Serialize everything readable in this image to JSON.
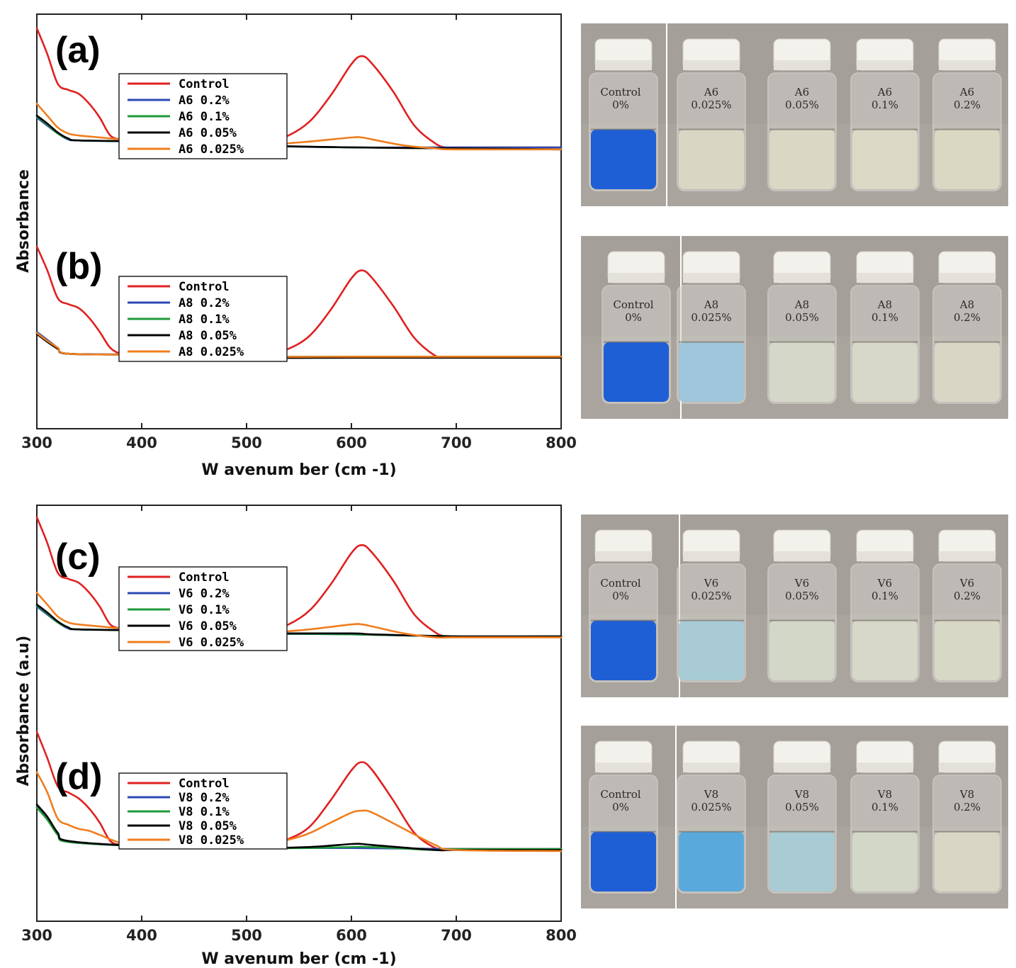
{
  "chart_data": [
    {
      "type": "line",
      "chart_key": "ab",
      "xlabel": "W avenum ber (cm -1)",
      "ylabel": "Absorbance",
      "xlim": [
        300,
        800
      ],
      "x_ticks": [
        300,
        400,
        500,
        600,
        700,
        800
      ],
      "panels": [
        {
          "label": "(a)",
          "legend": [
            "Control",
            "A6 0.2%",
            "A6 0.1%",
            "A6 0.05%",
            "A6 0.025%"
          ],
          "series": [
            {
              "name": "Control",
              "color": "#e02020",
              "x": [
                300,
                310,
                320,
                330,
                340,
                350,
                360,
                370,
                380,
                390,
                400,
                450,
                500,
                520,
                540,
                560,
                580,
                600,
                610,
                620,
                640,
                660,
                680,
                690,
                700,
                800
              ],
              "y": [
                1.0,
                0.87,
                0.72,
                0.69,
                0.67,
                0.62,
                0.55,
                0.46,
                0.44,
                0.43,
                0.43,
                0.44,
                0.43,
                0.43,
                0.46,
                0.53,
                0.66,
                0.82,
                0.86,
                0.82,
                0.68,
                0.51,
                0.42,
                0.4,
                0.4,
                0.4
              ]
            },
            {
              "name": "A6 0.2%",
              "color": "#2b48b5",
              "x": [
                300,
                310,
                320,
                330,
                340,
                400,
                450,
                500,
                600,
                700,
                800
              ],
              "y": [
                0.55,
                0.51,
                0.47,
                0.44,
                0.435,
                0.43,
                0.43,
                0.41,
                0.4,
                0.4,
                0.4
              ]
            },
            {
              "name": "A6 0.1%",
              "color": "#1e9a3a",
              "x": [
                300,
                310,
                320,
                330,
                340,
                400,
                450,
                500,
                600,
                700,
                800
              ],
              "y": [
                0.555,
                0.515,
                0.47,
                0.445,
                0.435,
                0.43,
                0.42,
                0.41,
                0.4,
                0.395,
                0.39
              ]
            },
            {
              "name": "A6 0.05%",
              "color": "#000000",
              "x": [
                300,
                310,
                320,
                330,
                340,
                400,
                450,
                500,
                600,
                700,
                800
              ],
              "y": [
                0.56,
                0.52,
                0.475,
                0.445,
                0.435,
                0.43,
                0.42,
                0.41,
                0.4,
                0.395,
                0.39
              ]
            },
            {
              "name": "A6 0.025%",
              "color": "#f07d1e",
              "x": [
                300,
                310,
                320,
                330,
                340,
                350,
                380,
                400,
                450,
                500,
                550,
                600,
                610,
                620,
                650,
                680,
                700,
                800
              ],
              "y": [
                0.62,
                0.56,
                0.5,
                0.47,
                0.46,
                0.455,
                0.44,
                0.43,
                0.42,
                0.41,
                0.425,
                0.45,
                0.45,
                0.44,
                0.41,
                0.395,
                0.39,
                0.39
              ]
            }
          ]
        },
        {
          "label": "(b)",
          "legend": [
            "Control",
            "A8 0.2%",
            "A8 0.1%",
            "A8 0.05%",
            "A8 0.025%"
          ],
          "series": [
            {
              "name": "Control",
              "color": "#e02020",
              "x": [
                300,
                310,
                320,
                330,
                340,
                350,
                360,
                370,
                380,
                390,
                400,
                450,
                500,
                520,
                540,
                560,
                580,
                600,
                610,
                620,
                640,
                660,
                680,
                690,
                700,
                800
              ],
              "y": [
                0.9,
                0.78,
                0.64,
                0.61,
                0.59,
                0.54,
                0.47,
                0.39,
                0.36,
                0.355,
                0.355,
                0.36,
                0.355,
                0.355,
                0.385,
                0.45,
                0.58,
                0.74,
                0.78,
                0.74,
                0.6,
                0.44,
                0.35,
                0.345,
                0.345,
                0.345
              ]
            },
            {
              "name": "A8 0.2%",
              "color": "#2b48b5",
              "x": [
                300,
                310,
                320,
                330,
                400,
                500,
                600,
                700,
                800
              ],
              "y": [
                0.47,
                0.43,
                0.39,
                0.36,
                0.355,
                0.345,
                0.345,
                0.345,
                0.345
              ]
            },
            {
              "name": "A8 0.1%",
              "color": "#1e9a3a",
              "x": [
                300,
                310,
                320,
                330,
                400,
                500,
                600,
                700,
                800
              ],
              "y": [
                0.465,
                0.425,
                0.39,
                0.36,
                0.355,
                0.345,
                0.345,
                0.345,
                0.345
              ]
            },
            {
              "name": "A8 0.05%",
              "color": "#000000",
              "x": [
                300,
                310,
                320,
                330,
                400,
                500,
                600,
                700,
                800
              ],
              "y": [
                0.46,
                0.42,
                0.385,
                0.36,
                0.355,
                0.34,
                0.34,
                0.34,
                0.34
              ]
            },
            {
              "name": "A8 0.025%",
              "color": "#f07d1e",
              "x": [
                300,
                310,
                320,
                330,
                400,
                500,
                600,
                700,
                800
              ],
              "y": [
                0.465,
                0.425,
                0.39,
                0.36,
                0.355,
                0.345,
                0.345,
                0.345,
                0.345
              ]
            }
          ]
        }
      ]
    },
    {
      "type": "line",
      "chart_key": "cd",
      "xlabel": "W avenum ber (cm -1)",
      "ylabel": "Absorbance (a.u)",
      "xlim": [
        300,
        800
      ],
      "x_ticks": [
        300,
        400,
        500,
        600,
        700,
        800
      ],
      "panels": [
        {
          "label": "(c)",
          "legend": [
            "Control",
            "V6 0.2%",
            "V6 0.1%",
            "V6 0.05%",
            "V6 0.025%"
          ],
          "series": [
            {
              "name": "Control",
              "color": "#e02020",
              "x": [
                300,
                310,
                320,
                330,
                340,
                350,
                360,
                370,
                380,
                390,
                400,
                450,
                500,
                520,
                540,
                560,
                580,
                600,
                610,
                620,
                640,
                660,
                680,
                690,
                700,
                800
              ],
              "y": [
                1.0,
                0.87,
                0.72,
                0.69,
                0.67,
                0.62,
                0.55,
                0.46,
                0.44,
                0.43,
                0.43,
                0.44,
                0.43,
                0.43,
                0.46,
                0.53,
                0.66,
                0.82,
                0.86,
                0.82,
                0.68,
                0.51,
                0.42,
                0.4,
                0.4,
                0.4
              ]
            },
            {
              "name": "V6 0.2%",
              "color": "#2b48b5",
              "x": [
                300,
                310,
                320,
                330,
                340,
                400,
                450,
                500,
                600,
                700,
                800
              ],
              "y": [
                0.55,
                0.51,
                0.47,
                0.44,
                0.435,
                0.43,
                0.43,
                0.415,
                0.41,
                0.4,
                0.4
              ]
            },
            {
              "name": "V6 0.1%",
              "color": "#1e9a3a",
              "x": [
                300,
                310,
                320,
                330,
                340,
                400,
                450,
                500,
                600,
                700,
                800
              ],
              "y": [
                0.555,
                0.515,
                0.47,
                0.445,
                0.435,
                0.43,
                0.42,
                0.415,
                0.41,
                0.4,
                0.4
              ]
            },
            {
              "name": "V6 0.05%",
              "color": "#000000",
              "x": [
                300,
                310,
                320,
                330,
                340,
                400,
                450,
                500,
                600,
                620,
                700,
                800
              ],
              "y": [
                0.56,
                0.52,
                0.475,
                0.445,
                0.435,
                0.43,
                0.42,
                0.415,
                0.415,
                0.41,
                0.4,
                0.4
              ]
            },
            {
              "name": "V6 0.025%",
              "color": "#f07d1e",
              "x": [
                300,
                310,
                320,
                330,
                340,
                350,
                380,
                400,
                450,
                500,
                550,
                600,
                610,
                620,
                650,
                680,
                700,
                800
              ],
              "y": [
                0.62,
                0.56,
                0.5,
                0.47,
                0.46,
                0.455,
                0.44,
                0.43,
                0.42,
                0.415,
                0.43,
                0.46,
                0.46,
                0.45,
                0.415,
                0.395,
                0.395,
                0.395
              ]
            }
          ]
        },
        {
          "label": "(d)",
          "legend": [
            "Control",
            "V8 0.2%",
            "V8 0.1%",
            "V8 0.05%",
            "V8 0.025%"
          ],
          "series": [
            {
              "name": "Control",
              "color": "#e02020",
              "x": [
                300,
                310,
                320,
                330,
                340,
                350,
                360,
                370,
                380,
                390,
                400,
                450,
                500,
                520,
                540,
                560,
                580,
                600,
                610,
                620,
                640,
                660,
                680,
                690,
                700,
                800
              ],
              "y": [
                0.92,
                0.79,
                0.65,
                0.62,
                0.59,
                0.54,
                0.47,
                0.38,
                0.36,
                0.355,
                0.36,
                0.365,
                0.36,
                0.365,
                0.39,
                0.45,
                0.58,
                0.73,
                0.77,
                0.73,
                0.58,
                0.42,
                0.345,
                0.34,
                0.34,
                0.34
              ]
            },
            {
              "name": "V8 0.2%",
              "color": "#2b48b5",
              "x": [
                300,
                310,
                320,
                330,
                400,
                500,
                600,
                700,
                800
              ],
              "y": [
                0.55,
                0.49,
                0.41,
                0.375,
                0.355,
                0.345,
                0.345,
                0.34,
                0.34
              ]
            },
            {
              "name": "V8 0.1%",
              "color": "#1e9a3a",
              "x": [
                300,
                310,
                320,
                330,
                400,
                500,
                560,
                600,
                620,
                680,
                700,
                800
              ],
              "y": [
                0.545,
                0.485,
                0.41,
                0.375,
                0.355,
                0.345,
                0.345,
                0.35,
                0.35,
                0.335,
                0.34,
                0.34
              ]
            },
            {
              "name": "V8 0.05%",
              "color": "#000000",
              "x": [
                300,
                310,
                320,
                330,
                400,
                500,
                560,
                600,
                610,
                620,
                680,
                700,
                800
              ],
              "y": [
                0.56,
                0.5,
                0.42,
                0.38,
                0.355,
                0.345,
                0.35,
                0.365,
                0.365,
                0.36,
                0.335,
                0.335,
                0.335
              ]
            },
            {
              "name": "V8 0.025%",
              "color": "#f07d1e",
              "x": [
                300,
                310,
                320,
                330,
                340,
                350,
                360,
                380,
                400,
                450,
                500,
                550,
                580,
                600,
                610,
                620,
                650,
                680,
                700,
                800
              ],
              "y": [
                0.72,
                0.62,
                0.49,
                0.46,
                0.44,
                0.43,
                0.41,
                0.37,
                0.355,
                0.35,
                0.35,
                0.4,
                0.47,
                0.52,
                0.53,
                0.52,
                0.44,
                0.36,
                0.335,
                0.33
              ]
            }
          ]
        }
      ]
    }
  ],
  "photos": [
    {
      "id": "a",
      "labels": [
        [
          "Control",
          "0%"
        ],
        [
          "A6",
          "0.025%"
        ],
        [
          "A6",
          "0.05%"
        ],
        [
          "A6",
          "0.1%"
        ],
        [
          "A6",
          "0.2%"
        ]
      ],
      "liquid_colors": [
        "#1f5fd6",
        "#d9d7c4",
        "#d8d8c4",
        "#d9d9c5",
        "#d9d8c3"
      ]
    },
    {
      "id": "b",
      "labels": [
        [
          "Control",
          "0%"
        ],
        [
          "A8",
          "0.025%"
        ],
        [
          "A8",
          "0.05%"
        ],
        [
          "A8",
          "0.1%"
        ],
        [
          "A8",
          "0.2%"
        ]
      ],
      "liquid_colors": [
        "#1f5fd6",
        "#9fc6da",
        "#d5d7c8",
        "#d8d8c8",
        "#d8d7c6"
      ]
    },
    {
      "id": "c",
      "labels": [
        [
          "Control",
          "0%"
        ],
        [
          "V6",
          "0.025%"
        ],
        [
          "V6",
          "0.05%"
        ],
        [
          "V6",
          "0.1%"
        ],
        [
          "V6",
          "0.2%"
        ]
      ],
      "liquid_colors": [
        "#1f5fd6",
        "#a9cbd6",
        "#d3d7c8",
        "#d7d8c8",
        "#d8d8c7"
      ]
    },
    {
      "id": "d",
      "labels": [
        [
          "Control",
          "0%"
        ],
        [
          "V8",
          "0.025%"
        ],
        [
          "V8",
          "0.05%"
        ],
        [
          "V8",
          "0.1%"
        ],
        [
          "V8",
          "0.2%"
        ]
      ],
      "liquid_colors": [
        "#1f5fd6",
        "#5aa9dc",
        "#a9cbd3",
        "#d2d7c8",
        "#d8d7c6"
      ]
    }
  ]
}
